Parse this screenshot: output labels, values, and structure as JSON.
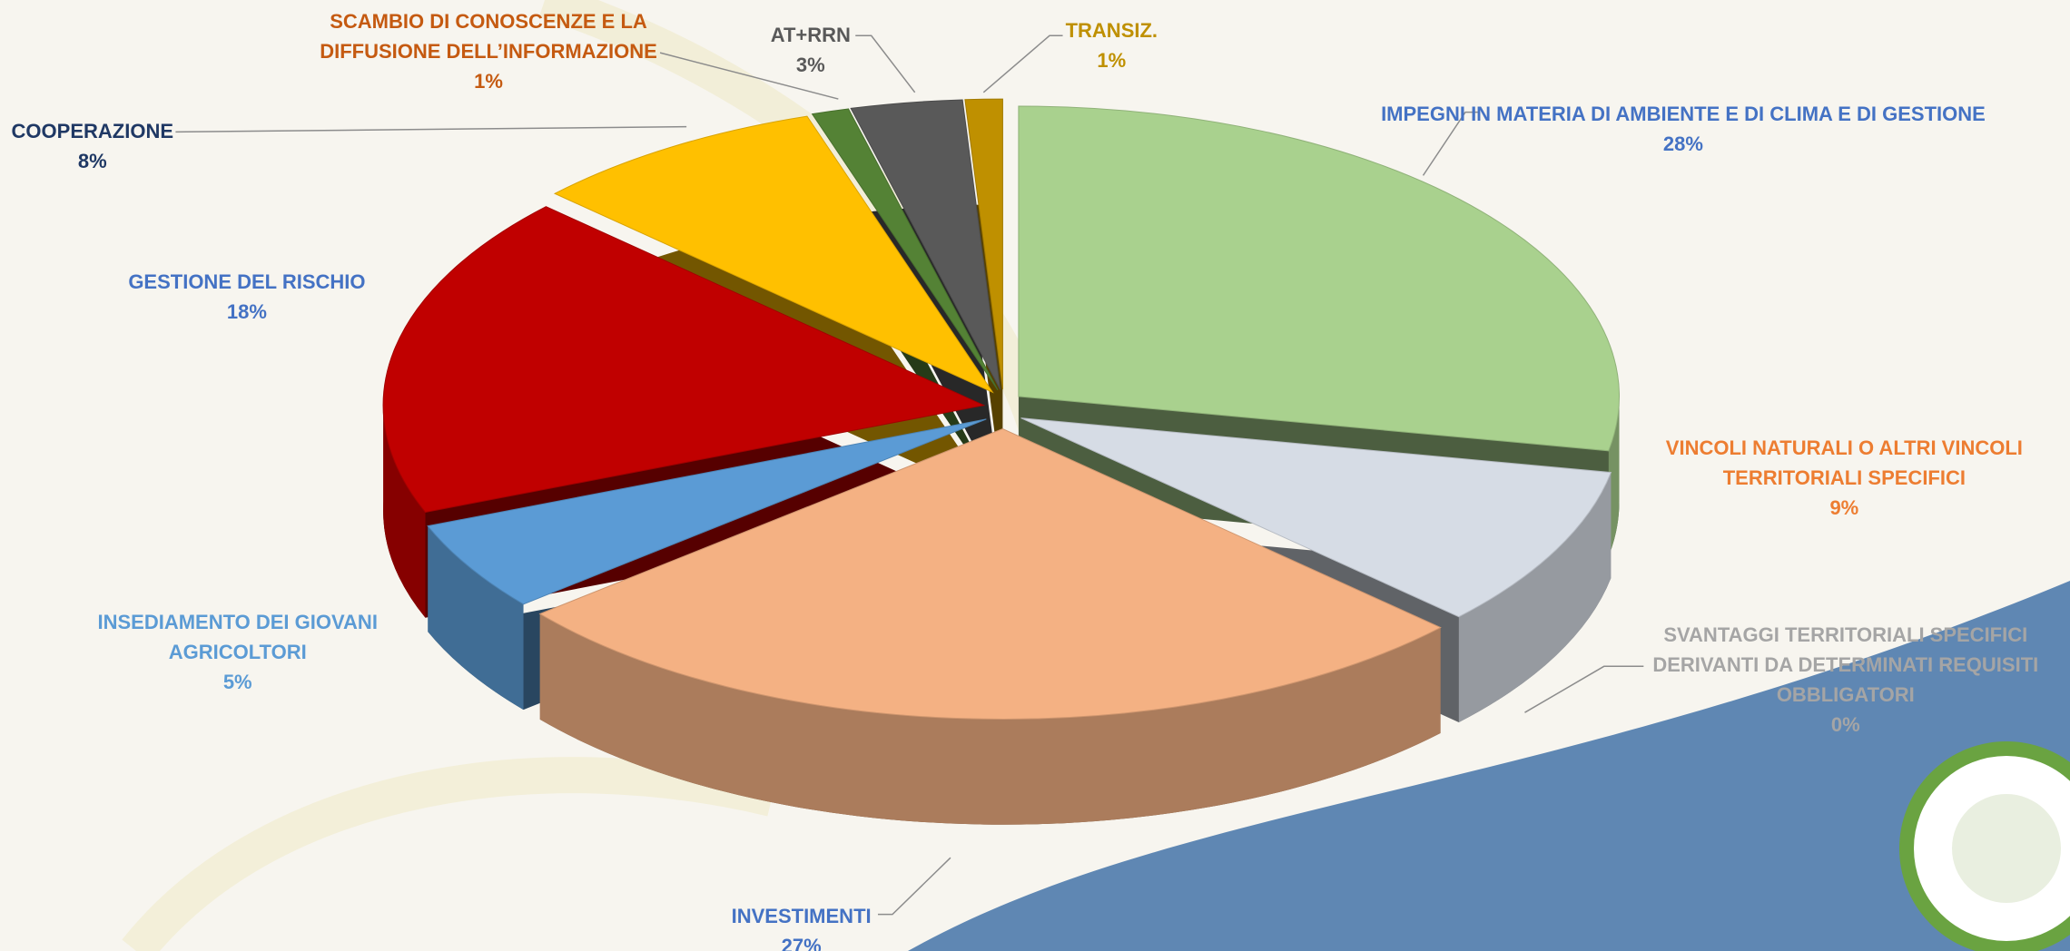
{
  "chart_data": {
    "type": "pie3d",
    "categories": [
      "IMPEGNI IN MATERIA DI AMBIENTE E DI CLIMA E DI GESTIONE",
      "VINCOLI NATURALI O ALTRI VINCOLI TERRITORIALI SPECIFICI",
      "SVANTAGGI TERRITORIALI SPECIFICI DERIVANTI DA DETERMINATI REQUISITI OBBLIGATORI",
      "INVESTIMENTI",
      "INSEDIAMENTO DEI GIOVANI AGRICOLTORI",
      "GESTIONE DEL RISCHIO",
      "COOPERAZIONE",
      "SCAMBIO DI CONOSCENZE E LA DIFFUSIONE DELL’INFORMAZIONE",
      "AT+RRN",
      "TRANSIZ."
    ],
    "values": [
      28,
      9,
      0,
      27,
      5,
      18,
      8,
      1,
      3,
      1
    ],
    "value_labels": [
      "28%",
      "9%",
      "0%",
      "27%",
      "5%",
      "18%",
      "8%",
      "1%",
      "3%",
      "1%"
    ],
    "colors": [
      "#a9d18e",
      "#d6dce5",
      "#c9b57a",
      "#f4b183",
      "#5b9bd5",
      "#c00000",
      "#ffc000",
      "#548235",
      "#595959",
      "#bf9000"
    ],
    "label_colors": [
      "#4472c4",
      "#ed7d31",
      "#a5a5a5",
      "#4472c4",
      "#5b9bd5",
      "#4472c4",
      "#1f3864",
      "#c55a11",
      "#595959",
      "#bf9000"
    ]
  }
}
